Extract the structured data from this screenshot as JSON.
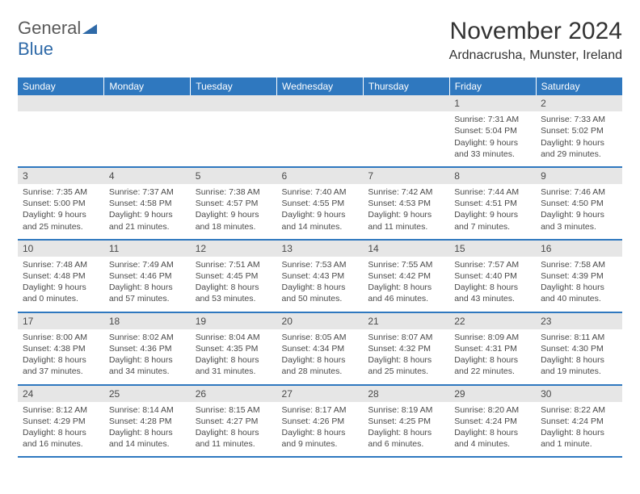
{
  "logo": {
    "text_gray": "General",
    "text_blue": "Blue"
  },
  "title": "November 2024",
  "subtitle": "Ardnacrusha, Munster, Ireland",
  "colors": {
    "header_bg": "#2f78bf",
    "header_text": "#ffffff",
    "row_divider": "#2f78bf",
    "daynum_bg": "#e6e6e6",
    "text": "#4a4a4a",
    "logo_gray": "#5a5a5a",
    "logo_blue": "#2f6aa8"
  },
  "day_headers": [
    "Sunday",
    "Monday",
    "Tuesday",
    "Wednesday",
    "Thursday",
    "Friday",
    "Saturday"
  ],
  "weeks": [
    [
      {
        "num": "",
        "lines": []
      },
      {
        "num": "",
        "lines": []
      },
      {
        "num": "",
        "lines": []
      },
      {
        "num": "",
        "lines": []
      },
      {
        "num": "",
        "lines": []
      },
      {
        "num": "1",
        "lines": [
          "Sunrise: 7:31 AM",
          "Sunset: 5:04 PM",
          "Daylight: 9 hours and 33 minutes."
        ]
      },
      {
        "num": "2",
        "lines": [
          "Sunrise: 7:33 AM",
          "Sunset: 5:02 PM",
          "Daylight: 9 hours and 29 minutes."
        ]
      }
    ],
    [
      {
        "num": "3",
        "lines": [
          "Sunrise: 7:35 AM",
          "Sunset: 5:00 PM",
          "Daylight: 9 hours and 25 minutes."
        ]
      },
      {
        "num": "4",
        "lines": [
          "Sunrise: 7:37 AM",
          "Sunset: 4:58 PM",
          "Daylight: 9 hours and 21 minutes."
        ]
      },
      {
        "num": "5",
        "lines": [
          "Sunrise: 7:38 AM",
          "Sunset: 4:57 PM",
          "Daylight: 9 hours and 18 minutes."
        ]
      },
      {
        "num": "6",
        "lines": [
          "Sunrise: 7:40 AM",
          "Sunset: 4:55 PM",
          "Daylight: 9 hours and 14 minutes."
        ]
      },
      {
        "num": "7",
        "lines": [
          "Sunrise: 7:42 AM",
          "Sunset: 4:53 PM",
          "Daylight: 9 hours and 11 minutes."
        ]
      },
      {
        "num": "8",
        "lines": [
          "Sunrise: 7:44 AM",
          "Sunset: 4:51 PM",
          "Daylight: 9 hours and 7 minutes."
        ]
      },
      {
        "num": "9",
        "lines": [
          "Sunrise: 7:46 AM",
          "Sunset: 4:50 PM",
          "Daylight: 9 hours and 3 minutes."
        ]
      }
    ],
    [
      {
        "num": "10",
        "lines": [
          "Sunrise: 7:48 AM",
          "Sunset: 4:48 PM",
          "Daylight: 9 hours and 0 minutes."
        ]
      },
      {
        "num": "11",
        "lines": [
          "Sunrise: 7:49 AM",
          "Sunset: 4:46 PM",
          "Daylight: 8 hours and 57 minutes."
        ]
      },
      {
        "num": "12",
        "lines": [
          "Sunrise: 7:51 AM",
          "Sunset: 4:45 PM",
          "Daylight: 8 hours and 53 minutes."
        ]
      },
      {
        "num": "13",
        "lines": [
          "Sunrise: 7:53 AM",
          "Sunset: 4:43 PM",
          "Daylight: 8 hours and 50 minutes."
        ]
      },
      {
        "num": "14",
        "lines": [
          "Sunrise: 7:55 AM",
          "Sunset: 4:42 PM",
          "Daylight: 8 hours and 46 minutes."
        ]
      },
      {
        "num": "15",
        "lines": [
          "Sunrise: 7:57 AM",
          "Sunset: 4:40 PM",
          "Daylight: 8 hours and 43 minutes."
        ]
      },
      {
        "num": "16",
        "lines": [
          "Sunrise: 7:58 AM",
          "Sunset: 4:39 PM",
          "Daylight: 8 hours and 40 minutes."
        ]
      }
    ],
    [
      {
        "num": "17",
        "lines": [
          "Sunrise: 8:00 AM",
          "Sunset: 4:38 PM",
          "Daylight: 8 hours and 37 minutes."
        ]
      },
      {
        "num": "18",
        "lines": [
          "Sunrise: 8:02 AM",
          "Sunset: 4:36 PM",
          "Daylight: 8 hours and 34 minutes."
        ]
      },
      {
        "num": "19",
        "lines": [
          "Sunrise: 8:04 AM",
          "Sunset: 4:35 PM",
          "Daylight: 8 hours and 31 minutes."
        ]
      },
      {
        "num": "20",
        "lines": [
          "Sunrise: 8:05 AM",
          "Sunset: 4:34 PM",
          "Daylight: 8 hours and 28 minutes."
        ]
      },
      {
        "num": "21",
        "lines": [
          "Sunrise: 8:07 AM",
          "Sunset: 4:32 PM",
          "Daylight: 8 hours and 25 minutes."
        ]
      },
      {
        "num": "22",
        "lines": [
          "Sunrise: 8:09 AM",
          "Sunset: 4:31 PM",
          "Daylight: 8 hours and 22 minutes."
        ]
      },
      {
        "num": "23",
        "lines": [
          "Sunrise: 8:11 AM",
          "Sunset: 4:30 PM",
          "Daylight: 8 hours and 19 minutes."
        ]
      }
    ],
    [
      {
        "num": "24",
        "lines": [
          "Sunrise: 8:12 AM",
          "Sunset: 4:29 PM",
          "Daylight: 8 hours and 16 minutes."
        ]
      },
      {
        "num": "25",
        "lines": [
          "Sunrise: 8:14 AM",
          "Sunset: 4:28 PM",
          "Daylight: 8 hours and 14 minutes."
        ]
      },
      {
        "num": "26",
        "lines": [
          "Sunrise: 8:15 AM",
          "Sunset: 4:27 PM",
          "Daylight: 8 hours and 11 minutes."
        ]
      },
      {
        "num": "27",
        "lines": [
          "Sunrise: 8:17 AM",
          "Sunset: 4:26 PM",
          "Daylight: 8 hours and 9 minutes."
        ]
      },
      {
        "num": "28",
        "lines": [
          "Sunrise: 8:19 AM",
          "Sunset: 4:25 PM",
          "Daylight: 8 hours and 6 minutes."
        ]
      },
      {
        "num": "29",
        "lines": [
          "Sunrise: 8:20 AM",
          "Sunset: 4:24 PM",
          "Daylight: 8 hours and 4 minutes."
        ]
      },
      {
        "num": "30",
        "lines": [
          "Sunrise: 8:22 AM",
          "Sunset: 4:24 PM",
          "Daylight: 8 hours and 1 minute."
        ]
      }
    ]
  ]
}
